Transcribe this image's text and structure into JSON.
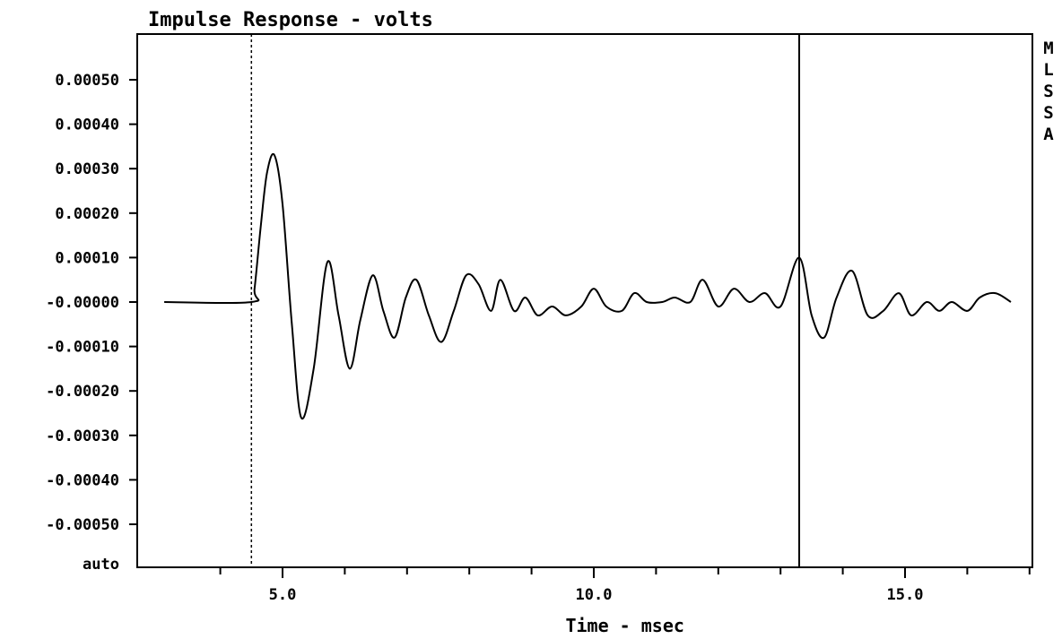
{
  "chart_data": {
    "type": "line",
    "title": "Impulse Response - volts",
    "xlabel": "Time - msec",
    "ylabel": "",
    "side_label": "MLSSA",
    "xlim": [
      2.8,
      17.5
    ],
    "ylim": [
      -0.0006,
      0.0006
    ],
    "x_ticks": [
      5.0,
      10.0,
      15.0
    ],
    "x_tick_labels": [
      "5.0",
      "10.0",
      "15.0"
    ],
    "x_minor_ticks": [
      4.0,
      6.0,
      7.0,
      8.0,
      9.0,
      11.0,
      12.0,
      13.0,
      14.0,
      16.0,
      17.0
    ],
    "y_ticks": [
      0.0005,
      0.0004,
      0.0003,
      0.0002,
      0.0001,
      0.0,
      -0.0001,
      -0.0002,
      -0.0003,
      -0.0004,
      -0.0005
    ],
    "y_tick_labels": [
      "0.00050",
      "0.00040",
      "0.00030",
      "0.00020",
      "0.00010",
      "-0.00000",
      "-0.00010",
      "-0.00020",
      "-0.00030",
      "-0.00040",
      "-0.00050"
    ],
    "y_bottom_label": "auto",
    "grid": false,
    "markers": [
      {
        "x": 4.5,
        "style": "dashed"
      },
      {
        "x": 13.3,
        "style": "solid"
      }
    ],
    "series": [
      {
        "x": [
          3.1,
          4.5,
          4.55,
          4.65,
          4.75,
          4.87,
          5.0,
          5.15,
          5.3,
          5.5,
          5.72,
          5.9,
          6.08,
          6.25,
          6.45,
          6.62,
          6.8,
          6.98,
          7.15,
          7.35,
          7.55,
          7.75,
          7.95,
          8.15,
          8.35,
          8.5,
          8.72,
          8.9,
          9.1,
          9.33,
          9.55,
          9.8,
          10.0,
          10.2,
          10.45,
          10.65,
          10.85,
          11.1,
          11.3,
          11.55,
          11.75,
          12.0,
          12.25,
          12.5,
          12.75,
          13.0,
          13.3,
          13.5,
          13.7,
          13.9,
          14.15,
          14.4,
          14.65,
          14.9,
          15.1,
          15.35,
          15.55,
          15.75,
          16.0,
          16.2,
          16.45,
          16.7
        ],
        "y": [
          0.0,
          0.0,
          3e-05,
          0.00017,
          0.00029,
          0.00033,
          0.00022,
          -5e-05,
          -0.00026,
          -0.00015,
          9e-05,
          -3e-05,
          -0.00015,
          -4e-05,
          6e-05,
          -2e-05,
          -8e-05,
          1e-05,
          5e-05,
          -3e-05,
          -9e-05,
          -2e-05,
          6e-05,
          4e-05,
          -2e-05,
          5e-05,
          -2e-05,
          1e-05,
          -3e-05,
          -1e-05,
          -3e-05,
          -1e-05,
          3e-05,
          -1e-05,
          -2e-05,
          2e-05,
          0.0,
          0.0,
          1e-05,
          0.0,
          5e-05,
          -1e-05,
          3e-05,
          0.0,
          2e-05,
          -1e-05,
          0.0001,
          -3e-05,
          -8e-05,
          1e-05,
          7e-05,
          -3e-05,
          -2e-05,
          2e-05,
          -3e-05,
          0.0,
          -2e-05,
          0.0,
          -2e-05,
          1e-05,
          2e-05,
          0.0
        ]
      }
    ]
  }
}
